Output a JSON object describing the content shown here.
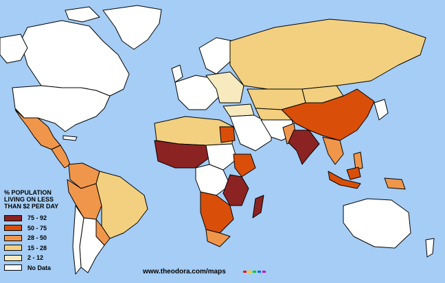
{
  "map": {
    "legend_title": [
      "% POPULATION",
      "LIVING ON LESS",
      "THAN $2 PER DAY"
    ],
    "legend": [
      {
        "label": "75 - 92",
        "color": "#8b2323"
      },
      {
        "label": "50 - 75",
        "color": "#d94f0a"
      },
      {
        "label": "28 - 50",
        "color": "#f0964b"
      },
      {
        "label": "15 - 28",
        "color": "#f2d080"
      },
      {
        "label": "2 - 12",
        "color": "#f7eabf"
      },
      {
        "label": "No Data",
        "color": "#ffffff"
      }
    ],
    "ocean_color": "#a5cdf5",
    "source": "www.theodora.com/maps"
  }
}
